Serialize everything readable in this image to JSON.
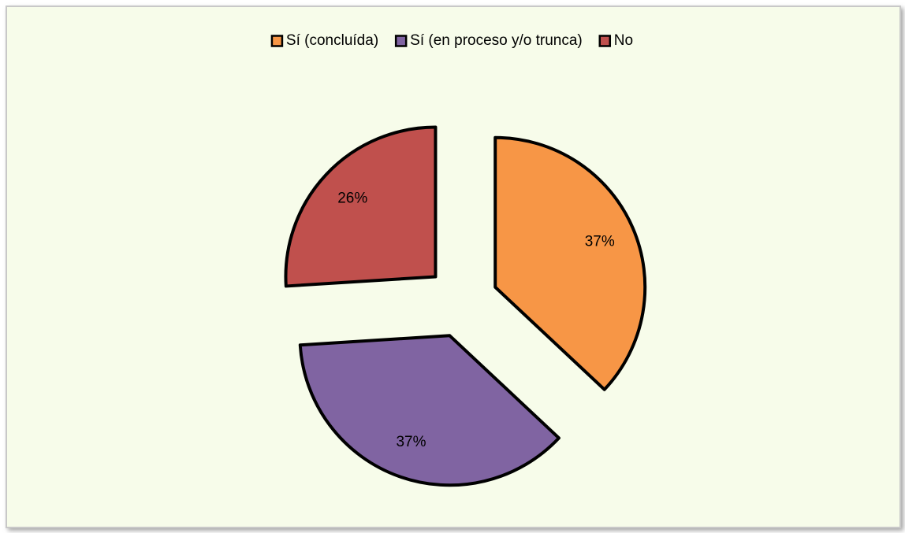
{
  "chart_data": {
    "type": "pie",
    "categories": [
      "Sí (concluída)",
      "Sí (en proceso y/o trunca)",
      "No"
    ],
    "values": [
      37,
      37,
      26
    ],
    "value_labels": [
      "37%",
      "37%",
      "26%"
    ],
    "colors": [
      "#f79646",
      "#8064a2",
      "#c0504d"
    ],
    "legend": "top"
  }
}
